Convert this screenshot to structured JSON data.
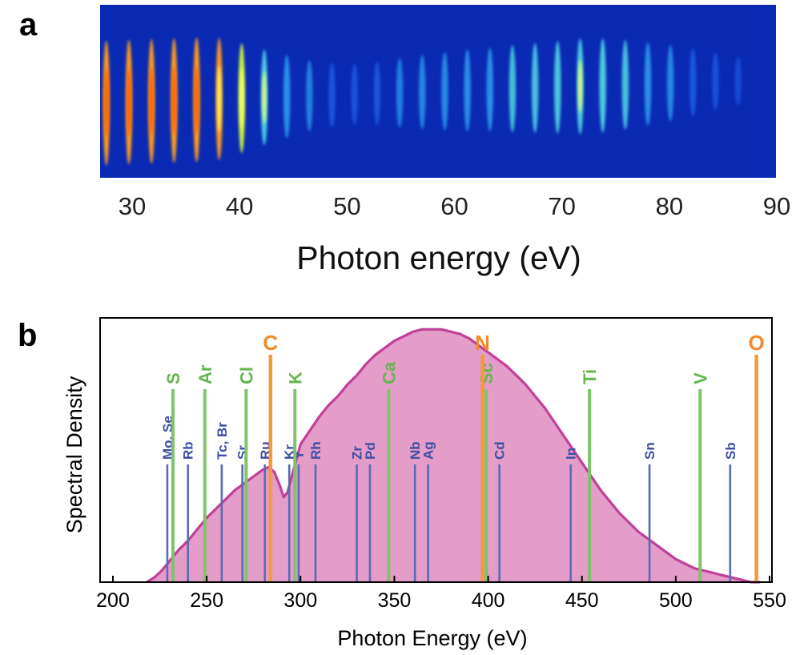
{
  "panel_labels": [
    "a",
    "b"
  ],
  "colors": {
    "spectrum_fill": "#e49cc8",
    "spectrum_line": "#c0409a",
    "line_blue": "#5a6bb3",
    "line_green": "#7ec46a",
    "line_orange": "#f39a3a",
    "label_blue": "#3c4ea6",
    "label_green": "#64b64e",
    "label_orange": "#f0892a",
    "background_a": "#0a2ab4"
  },
  "chart_data": [
    {
      "id": "a",
      "type": "heatmap",
      "title": "",
      "xlabel": "Photon energy (eV)",
      "xlim": [
        26,
        90
      ],
      "xticks": [
        30,
        40,
        50,
        60,
        70,
        80,
        90
      ],
      "harmonics": [
        {
          "energy": 27.6,
          "intensity": 0.95
        },
        {
          "energy": 29.7,
          "intensity": 0.95
        },
        {
          "energy": 31.8,
          "intensity": 0.97
        },
        {
          "energy": 33.9,
          "intensity": 1.0
        },
        {
          "energy": 36.0,
          "intensity": 0.97
        },
        {
          "energy": 38.1,
          "intensity": 0.92
        },
        {
          "energy": 40.2,
          "intensity": 0.78
        },
        {
          "energy": 42.3,
          "intensity": 0.62
        },
        {
          "energy": 44.4,
          "intensity": 0.48
        },
        {
          "energy": 46.5,
          "intensity": 0.34
        },
        {
          "energy": 48.6,
          "intensity": 0.26
        },
        {
          "energy": 50.7,
          "intensity": 0.22
        },
        {
          "energy": 52.8,
          "intensity": 0.25
        },
        {
          "energy": 54.9,
          "intensity": 0.32
        },
        {
          "energy": 57.0,
          "intensity": 0.38
        },
        {
          "energy": 59.1,
          "intensity": 0.42
        },
        {
          "energy": 61.2,
          "intensity": 0.46
        },
        {
          "energy": 63.3,
          "intensity": 0.48
        },
        {
          "energy": 65.4,
          "intensity": 0.52
        },
        {
          "energy": 67.5,
          "intensity": 0.55
        },
        {
          "energy": 69.6,
          "intensity": 0.58
        },
        {
          "energy": 71.7,
          "intensity": 0.62
        },
        {
          "energy": 73.8,
          "intensity": 0.6
        },
        {
          "energy": 75.9,
          "intensity": 0.55
        },
        {
          "energy": 78.0,
          "intensity": 0.48
        },
        {
          "energy": 80.1,
          "intensity": 0.4
        },
        {
          "energy": 82.2,
          "intensity": 0.3
        },
        {
          "energy": 84.3,
          "intensity": 0.18
        },
        {
          "energy": 86.4,
          "intensity": 0.08
        }
      ]
    },
    {
      "id": "b",
      "type": "area",
      "title": "",
      "xlabel": "Photon Energy (eV)",
      "ylabel": "Spectral Density",
      "xlim": [
        200,
        550
      ],
      "ylim": [
        0,
        1.15
      ],
      "xticks": [
        200,
        250,
        300,
        350,
        400,
        450,
        500,
        550
      ],
      "grid": false,
      "spectrum": {
        "x": [
          218,
          222,
          226,
          230,
          235,
          240,
          245,
          250,
          255,
          260,
          265,
          270,
          275,
          280,
          283,
          286,
          289,
          291,
          293,
          296,
          300,
          305,
          310,
          315,
          320,
          325,
          330,
          335,
          340,
          345,
          350,
          355,
          360,
          365,
          370,
          375,
          380,
          385,
          390,
          395,
          400,
          405,
          410,
          415,
          420,
          425,
          430,
          435,
          440,
          445,
          450,
          455,
          460,
          465,
          470,
          475,
          480,
          485,
          490,
          495,
          500,
          505,
          510,
          515,
          520,
          525,
          530,
          535,
          540,
          545
        ],
        "y": [
          0.0,
          0.02,
          0.05,
          0.09,
          0.14,
          0.18,
          0.23,
          0.28,
          0.32,
          0.36,
          0.4,
          0.43,
          0.46,
          0.49,
          0.5,
          0.48,
          0.42,
          0.37,
          0.39,
          0.48,
          0.6,
          0.66,
          0.72,
          0.77,
          0.81,
          0.86,
          0.9,
          0.95,
          0.99,
          1.02,
          1.05,
          1.07,
          1.09,
          1.1,
          1.1,
          1.1,
          1.09,
          1.08,
          1.06,
          1.03,
          1.0,
          0.97,
          0.94,
          0.9,
          0.86,
          0.81,
          0.76,
          0.7,
          0.64,
          0.58,
          0.52,
          0.46,
          0.4,
          0.35,
          0.3,
          0.26,
          0.22,
          0.19,
          0.16,
          0.13,
          0.1,
          0.08,
          0.06,
          0.05,
          0.04,
          0.03,
          0.02,
          0.01,
          0.0,
          0.0
        ]
      },
      "element_lines": [
        {
          "label": "Mo, Se",
          "energy": 229,
          "group": "blue"
        },
        {
          "label": "Rb",
          "energy": 240,
          "group": "blue"
        },
        {
          "label": "Tc, Br",
          "energy": 258,
          "group": "blue"
        },
        {
          "label": "Sr",
          "energy": 269,
          "group": "blue"
        },
        {
          "label": "Ru",
          "energy": 281,
          "group": "blue"
        },
        {
          "label": "Kr",
          "energy": 294,
          "group": "blue"
        },
        {
          "label": "Y",
          "energy": 299,
          "group": "blue"
        },
        {
          "label": "Rh",
          "energy": 308,
          "group": "blue"
        },
        {
          "label": "Zr",
          "energy": 330,
          "group": "blue"
        },
        {
          "label": "Pd",
          "energy": 337,
          "group": "blue"
        },
        {
          "label": "Nb",
          "energy": 361,
          "group": "blue"
        },
        {
          "label": "Ag",
          "energy": 368,
          "group": "blue"
        },
        {
          "label": "Cd",
          "energy": 406,
          "group": "blue"
        },
        {
          "label": "In",
          "energy": 444,
          "group": "blue"
        },
        {
          "label": "Sn",
          "energy": 486,
          "group": "blue"
        },
        {
          "label": "Sb",
          "energy": 529,
          "group": "blue"
        },
        {
          "label": "S",
          "energy": 232,
          "group": "green"
        },
        {
          "label": "Ar",
          "energy": 249,
          "group": "green"
        },
        {
          "label": "Cl",
          "energy": 271,
          "group": "green"
        },
        {
          "label": "K",
          "energy": 297,
          "group": "green"
        },
        {
          "label": "Ca",
          "energy": 347,
          "group": "green"
        },
        {
          "label": "Sc",
          "energy": 399,
          "group": "green"
        },
        {
          "label": "Ti",
          "energy": 454,
          "group": "green"
        },
        {
          "label": "V",
          "energy": 513,
          "group": "green"
        },
        {
          "label": "C",
          "energy": 284,
          "group": "orange"
        },
        {
          "label": "N",
          "energy": 397,
          "group": "orange"
        },
        {
          "label": "O",
          "energy": 543,
          "group": "orange"
        }
      ]
    }
  ]
}
